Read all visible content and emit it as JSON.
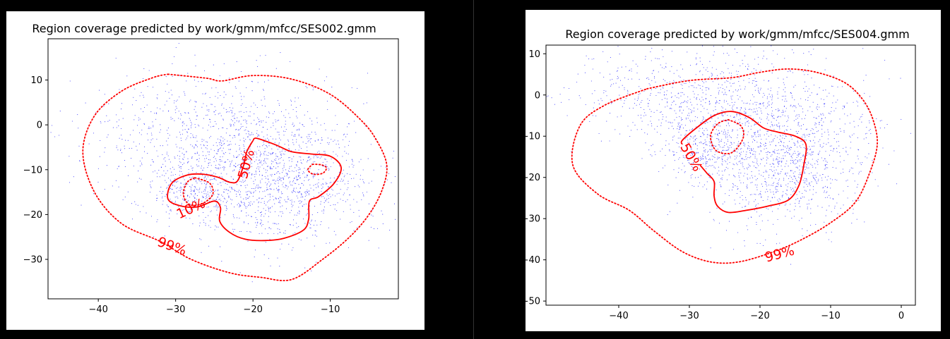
{
  "chart_data": [
    {
      "type": "scatter",
      "title": "Region coverage predicted by work/gmm/mfcc/SES002.gmm",
      "xlabel": "",
      "ylabel": "",
      "xlim": [
        -46.5,
        -1.2
      ],
      "ylim": [
        -38.8,
        19.2
      ],
      "xticks": [
        -40,
        -30,
        -20,
        -10
      ],
      "yticks": [
        -30,
        -20,
        -10,
        0,
        10
      ],
      "grid": false,
      "point_color": "#0000ff",
      "contour_color": "#ff0000",
      "points": {
        "n": 2200,
        "seed": 7,
        "clusters": [
          {
            "cx": -17,
            "cy": -12,
            "sx": 6.5,
            "sy": 7,
            "w": 0.55
          },
          {
            "cx": -28,
            "cy": -15,
            "sx": 3,
            "sy": 3,
            "w": 0.12
          },
          {
            "cx": -26,
            "cy": -2,
            "sx": 8,
            "sy": 7,
            "w": 0.33
          }
        ]
      },
      "contours": [
        {
          "label": "99%",
          "style": "dotted",
          "label_pos": [
            -30.5,
            -27.2
          ],
          "label_rot": 20,
          "points": [
            [
              -31.0,
              11.3
            ],
            [
              -26.0,
              10.4
            ],
            [
              -24.0,
              9.8
            ],
            [
              -20.0,
              11.0
            ],
            [
              -15.0,
              10.2
            ],
            [
              -10.0,
              6.8
            ],
            [
              -6.0,
              1.0
            ],
            [
              -4.0,
              -3.5
            ],
            [
              -2.7,
              -9.0
            ],
            [
              -3.3,
              -14.5
            ],
            [
              -5.0,
              -20.0
            ],
            [
              -7.5,
              -25.0
            ],
            [
              -11.0,
              -30.0
            ],
            [
              -15.0,
              -34.5
            ],
            [
              -19.0,
              -34.0
            ],
            [
              -23.0,
              -33.0
            ],
            [
              -28.0,
              -30.0
            ],
            [
              -32.0,
              -26.0
            ],
            [
              -37.0,
              -22.0
            ],
            [
              -40.5,
              -15.0
            ],
            [
              -42.0,
              -6.0
            ],
            [
              -40.5,
              2.0
            ],
            [
              -37.0,
              7.5
            ],
            [
              -33.0,
              10.5
            ],
            [
              -31.0,
              11.3
            ]
          ]
        },
        {
          "label": "50%",
          "style": "solid",
          "label_pos": [
            -20.8,
            -8.8
          ],
          "label_rot": -75,
          "points": [
            [
              -20.0,
              -3.5
            ],
            [
              -19.5,
              -3.0
            ],
            [
              -17.0,
              -4.5
            ],
            [
              -15.0,
              -6.0
            ],
            [
              -12.5,
              -6.5
            ],
            [
              -10.0,
              -7.0
            ],
            [
              -8.6,
              -9.5
            ],
            [
              -9.5,
              -13.0
            ],
            [
              -11.5,
              -16.0
            ],
            [
              -12.7,
              -17.0
            ],
            [
              -12.8,
              -21.0
            ],
            [
              -13.5,
              -23.5
            ],
            [
              -16.0,
              -25.3
            ],
            [
              -18.5,
              -25.8
            ],
            [
              -21.0,
              -25.5
            ],
            [
              -23.0,
              -24.0
            ],
            [
              -24.3,
              -21.5
            ],
            [
              -24.2,
              -18.5
            ],
            [
              -25.0,
              -17.0
            ],
            [
              -27.2,
              -18.3
            ],
            [
              -29.5,
              -18.0
            ],
            [
              -31.0,
              -16.5
            ],
            [
              -30.5,
              -13.0
            ],
            [
              -28.5,
              -11.2
            ],
            [
              -26.5,
              -11.0
            ],
            [
              -24.5,
              -11.7
            ],
            [
              -23.0,
              -12.8
            ],
            [
              -22.0,
              -12.5
            ],
            [
              -21.2,
              -9.0
            ],
            [
              -20.8,
              -6.0
            ],
            [
              -20.0,
              -3.5
            ]
          ]
        },
        {
          "label": "",
          "style": "dotted",
          "label_pos": null,
          "label_rot": 0,
          "points": [
            [
              -12.3,
              -8.8
            ],
            [
              -11.2,
              -8.9
            ],
            [
              -10.5,
              -9.6
            ],
            [
              -11.0,
              -10.8
            ],
            [
              -12.2,
              -11.0
            ],
            [
              -12.9,
              -10.0
            ],
            [
              -12.3,
              -8.8
            ]
          ]
        },
        {
          "label": "10%",
          "style": "dotted",
          "label_pos": [
            -28.0,
            -18.8
          ],
          "label_rot": -25,
          "points": [
            [
              -27.5,
              -11.8
            ],
            [
              -25.6,
              -13.0
            ],
            [
              -25.2,
              -15.5
            ],
            [
              -26.5,
              -17.5
            ],
            [
              -28.2,
              -17.8
            ],
            [
              -29.0,
              -15.5
            ],
            [
              -28.5,
              -12.8
            ],
            [
              -27.5,
              -11.8
            ]
          ]
        }
      ]
    },
    {
      "type": "scatter",
      "title": "Region coverage predicted by work/gmm/mfcc/SES004.gmm",
      "xlabel": "",
      "ylabel": "",
      "xlim": [
        -50.3,
        2.0
      ],
      "ylim": [
        -51.0,
        12.1
      ],
      "xticks": [
        -40,
        -30,
        -20,
        -10,
        0
      ],
      "yticks": [
        -50,
        -40,
        -30,
        -20,
        -10,
        0,
        10
      ],
      "grid": false,
      "point_color": "#0000ff",
      "contour_color": "#ff0000",
      "points": {
        "n": 2300,
        "seed": 11,
        "clusters": [
          {
            "cx": -17,
            "cy": -15,
            "sx": 6,
            "sy": 8,
            "w": 0.55
          },
          {
            "cx": -28,
            "cy": -13,
            "sx": 3,
            "sy": 4,
            "w": 0.12
          },
          {
            "cx": -28,
            "cy": 0,
            "sx": 10,
            "sy": 6,
            "w": 0.33
          }
        ]
      },
      "contours": [
        {
          "label": "99%",
          "style": "dotted",
          "label_pos": [
            -17.2,
            -38.7
          ],
          "label_rot": -15,
          "points": [
            [
              -36.0,
              1.5
            ],
            [
              -30.0,
              3.5
            ],
            [
              -24.0,
              4.2
            ],
            [
              -20.0,
              5.5
            ],
            [
              -16.0,
              6.3
            ],
            [
              -12.0,
              5.5
            ],
            [
              -8.0,
              3.0
            ],
            [
              -5.5,
              -1.0
            ],
            [
              -4.0,
              -6.0
            ],
            [
              -3.4,
              -12.0
            ],
            [
              -4.5,
              -19.0
            ],
            [
              -6.5,
              -26.0
            ],
            [
              -10.0,
              -31.0
            ],
            [
              -14.0,
              -35.0
            ],
            [
              -18.0,
              -38.0
            ],
            [
              -23.0,
              -40.5
            ],
            [
              -27.0,
              -40.5
            ],
            [
              -31.0,
              -38.0
            ],
            [
              -35.0,
              -33.0
            ],
            [
              -38.5,
              -28.0
            ],
            [
              -43.0,
              -24.0
            ],
            [
              -46.5,
              -17.0
            ],
            [
              -45.5,
              -7.5
            ],
            [
              -42.0,
              -2.5
            ],
            [
              -36.0,
              1.5
            ]
          ]
        },
        {
          "label": "50%",
          "style": "solid",
          "label_pos": [
            -29.8,
            -15.2
          ],
          "label_rot": 60,
          "points": [
            [
              -31.0,
              -12.0
            ],
            [
              -31.0,
              -11.0
            ],
            [
              -29.0,
              -8.0
            ],
            [
              -26.5,
              -5.0
            ],
            [
              -24.0,
              -4.0
            ],
            [
              -21.5,
              -5.5
            ],
            [
              -19.5,
              -8.0
            ],
            [
              -17.5,
              -9.0
            ],
            [
              -15.0,
              -10.0
            ],
            [
              -13.5,
              -12.0
            ],
            [
              -13.8,
              -17.0
            ],
            [
              -14.5,
              -22.0
            ],
            [
              -16.0,
              -25.5
            ],
            [
              -19.0,
              -27.0
            ],
            [
              -22.0,
              -28.0
            ],
            [
              -24.5,
              -28.5
            ],
            [
              -26.0,
              -27.0
            ],
            [
              -26.5,
              -24.5
            ],
            [
              -26.5,
              -21.0
            ],
            [
              -27.5,
              -19.0
            ],
            [
              -28.5,
              -17.0
            ]
          ]
        },
        {
          "label": "",
          "style": "dotted",
          "label_pos": null,
          "label_rot": 0,
          "points": [
            [
              -24.5,
              -6.0
            ],
            [
              -22.7,
              -7.5
            ],
            [
              -22.4,
              -10.5
            ],
            [
              -24.0,
              -14.0
            ],
            [
              -26.2,
              -13.5
            ],
            [
              -27.0,
              -10.0
            ],
            [
              -26.0,
              -7.0
            ],
            [
              -24.5,
              -6.0
            ]
          ]
        }
      ]
    }
  ]
}
